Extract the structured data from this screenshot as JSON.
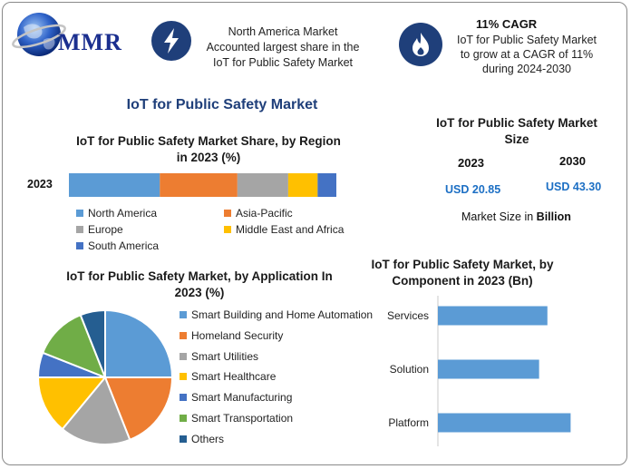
{
  "header": {
    "logo_text": "MMR",
    "box1_lines": [
      "North America Market",
      "Accounted largest share in the",
      "IoT for Public Safety Market"
    ],
    "box2_title": "11% CAGR",
    "box2_lines": [
      "IoT for Public Safety Market",
      "to grow at a CAGR of 11%",
      "during 2024-2030"
    ]
  },
  "main_title": "IoT for Public Safety Market",
  "market_size": {
    "title_lines": [
      "IoT for Public Safety Market",
      "Size"
    ],
    "year_a": "2023",
    "year_b": "2030",
    "value_a": "USD 20.85",
    "value_b": "USD 43.30",
    "note_prefix": "Market Size in ",
    "note_bold": "Billion"
  },
  "chart_data": [
    {
      "type": "bar",
      "orientation": "horizontal-stacked",
      "title": "IoT for Public Safety Market Share, by Region in 2023 (%)",
      "title_lines": [
        "IoT for Public Safety Market Share, by Region",
        "in 2023 (%)"
      ],
      "categories": [
        "2023"
      ],
      "series": [
        {
          "name": "North America",
          "values": [
            34
          ],
          "color": "#5b9bd5"
        },
        {
          "name": "Asia-Pacific",
          "values": [
            29
          ],
          "color": "#ed7d31"
        },
        {
          "name": "Europe",
          "values": [
            19
          ],
          "color": "#a5a5a5"
        },
        {
          "name": "Middle East and Africa",
          "values": [
            11
          ],
          "color": "#ffc000"
        },
        {
          "name": "South America",
          "values": [
            7
          ],
          "color": "#4472c4"
        }
      ],
      "legend_position": "bottom"
    },
    {
      "type": "pie",
      "title": "IoT for Public Safety Market, by Application In 2023 (%)",
      "title_lines": [
        "IoT for Public Safety Market, by Application In",
        "2023 (%)"
      ],
      "slices": [
        {
          "name": "Smart Building and Home Automation",
          "value": 25,
          "color": "#5b9bd5"
        },
        {
          "name": "Homeland Security",
          "value": 19,
          "color": "#ed7d31"
        },
        {
          "name": "Smart Utilities",
          "value": 17,
          "color": "#a5a5a5"
        },
        {
          "name": "Smart Healthcare",
          "value": 14,
          "color": "#ffc000"
        },
        {
          "name": "Smart Manufacturing",
          "value": 6,
          "color": "#4472c4"
        },
        {
          "name": "Smart Transportation",
          "value": 13,
          "color": "#70ad47"
        },
        {
          "name": "Others",
          "value": 6,
          "color": "#255e91"
        }
      ],
      "legend_position": "right"
    },
    {
      "type": "bar",
      "orientation": "horizontal",
      "title": "IoT for Public Safety Market, by Component in 2023 (Bn)",
      "title_lines": [
        "IoT for Public Safety Market, by",
        "Component in 2023 (Bn)"
      ],
      "categories": [
        "Services",
        "Solution",
        "Platform"
      ],
      "values": [
        6.6,
        6.1,
        8.0
      ],
      "color": "#5b9bd5",
      "xlim": [
        0,
        10
      ],
      "grid": false
    }
  ]
}
